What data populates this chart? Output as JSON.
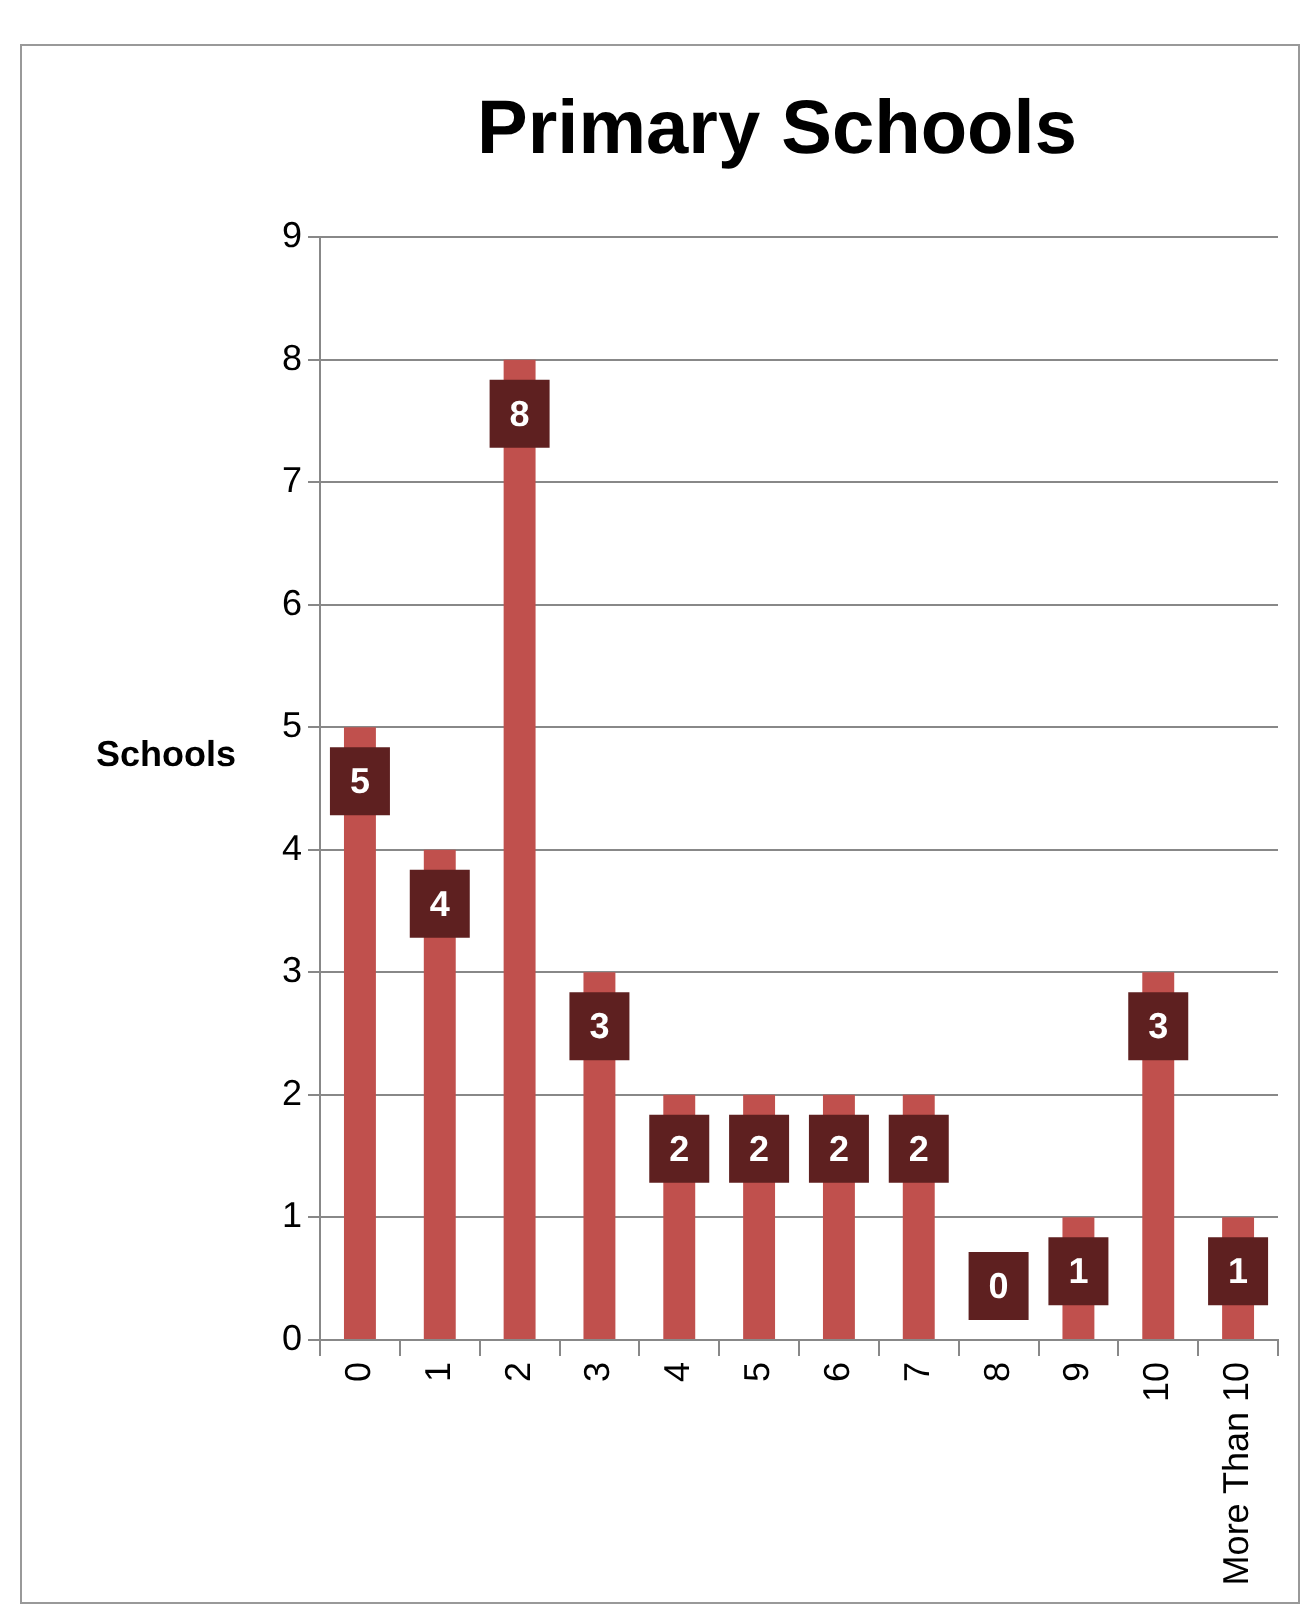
{
  "chart_data": {
    "type": "bar",
    "title": "Primary Schools",
    "ylabel": "Schools",
    "categories": [
      "0",
      "1",
      "2",
      "3",
      "4",
      "5",
      "6",
      "7",
      "8",
      "9",
      "10",
      "More Than 10"
    ],
    "values": [
      5,
      4,
      8,
      3,
      2,
      2,
      2,
      2,
      0,
      1,
      3,
      1
    ],
    "color": "#c0504d",
    "ylim": [
      0,
      9
    ],
    "yticks": [
      0,
      1,
      2,
      3,
      4,
      5,
      6,
      7,
      8,
      9
    ],
    "grid": "y",
    "legend": false,
    "data_labels": true
  }
}
